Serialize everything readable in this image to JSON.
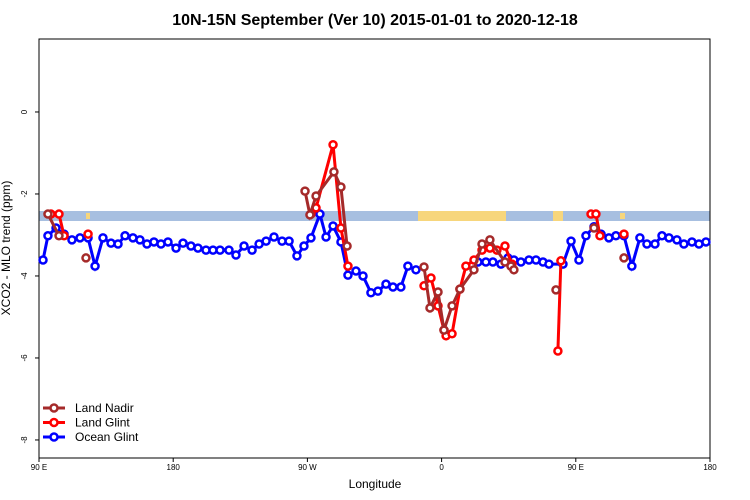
{
  "chart_data": {
    "type": "line",
    "title": "10N-15N September (Ver 10)   2015-01-01 to 2020-12-18",
    "xlabel": "Longitude",
    "ylabel": "XCO2 - MLO trend (ppm)",
    "xlim": [
      90,
      540
    ],
    "ylim": [
      -8.44,
      1.78
    ],
    "xticks": [
      {
        "value": 90,
        "label": "90 E"
      },
      {
        "value": 180,
        "label": "180"
      },
      {
        "value": 270,
        "label": "90 W"
      },
      {
        "value": 360,
        "label": "0"
      },
      {
        "value": 450,
        "label": "90 E"
      },
      {
        "value": 540,
        "label": "180"
      }
    ],
    "yticks": [
      0,
      -2,
      -4,
      -6,
      -8
    ],
    "legend": "bottom-left",
    "series": [
      {
        "name": "Land Nadir",
        "color": "#a52a2a",
        "x": [
          96.0,
          103.4,
          null,
          121.5,
          null,
          268.4,
          271.7,
          275.8,
          287.8,
          292.5,
          296.6,
          null,
          348.2,
          352.2,
          357.6,
          361.6,
          367.0,
          372.3,
          381.7,
          387.1,
          392.4,
          402.5,
          406.5,
          408.5,
          null,
          436.7,
          null,
          462.2,
          null,
          482.3
        ],
        "values": [
          -2.49,
          -3.02,
          null,
          -3.56,
          null,
          -1.93,
          -2.51,
          -2.05,
          -1.46,
          -1.83,
          -3.27,
          null,
          -3.78,
          -4.78,
          -4.39,
          -5.32,
          -4.73,
          -4.32,
          -3.85,
          -3.22,
          -3.12,
          -3.66,
          -3.76,
          -3.85,
          null,
          -4.34,
          null,
          -2.83,
          null,
          -3.56
        ]
      },
      {
        "name": "Land Glint",
        "color": "#ff0000",
        "x": [
          98.0,
          103.4,
          106.8,
          null,
          122.9,
          null,
          272.4,
          275.8,
          287.2,
          292.5,
          297.2,
          null,
          348.2,
          352.9,
          357.6,
          361.6,
          363.0,
          367.0,
          372.3,
          376.3,
          381.7,
          387.1,
          392.4,
          397.1,
          402.5,
          407.2,
          null,
          438.0,
          440.0,
          null,
          460.2,
          463.5,
          466.2,
          null,
          482.3
        ],
        "values": [
          -2.49,
          -2.49,
          -3.02,
          null,
          -2.98,
          null,
          -2.49,
          -2.34,
          -0.8,
          -2.83,
          -3.76,
          null,
          -4.24,
          -4.05,
          -4.73,
          -5.32,
          -5.46,
          -5.41,
          -4.32,
          -3.76,
          -3.61,
          -3.37,
          -3.32,
          -3.37,
          -3.27,
          -3.71,
          null,
          -5.83,
          -3.63,
          null,
          -2.49,
          -2.49,
          -3.02,
          null,
          -2.98
        ]
      },
      {
        "name": "Ocean Glint",
        "color": "#0000ff",
        "x": [
          92.7,
          96.0,
          101.4,
          106.8,
          112.1,
          117.5,
          122.9,
          127.6,
          132.9,
          138.3,
          143.0,
          147.7,
          153.0,
          157.7,
          162.4,
          167.1,
          171.8,
          176.5,
          181.9,
          186.6,
          191.9,
          196.6,
          202.0,
          206.7,
          211.4,
          217.4,
          222.1,
          227.5,
          232.9,
          237.6,
          242.3,
          247.6,
          253.0,
          257.7,
          263.0,
          267.7,
          272.4,
          278.4,
          282.5,
          287.2,
          292.5,
          297.2,
          302.6,
          307.3,
          312.6,
          317.3,
          322.7,
          327.4,
          332.7,
          337.4,
          342.8,
          null,
          384.4,
          389.7,
          394.4,
          399.8,
          404.5,
          408.5,
          413.2,
          418.6,
          423.3,
          428.0,
          432.0,
          441.4,
          446.8,
          452.1,
          456.8,
          462.2,
          466.9,
          472.2,
          476.9,
          482.3,
          487.6,
          493.0,
          497.7,
          503.1,
          507.8,
          512.5,
          517.8,
          522.5,
          527.9,
          532.6,
          537.3
        ],
        "values": [
          -3.61,
          -3.02,
          -2.83,
          -2.98,
          -3.12,
          -3.07,
          -3.07,
          -3.76,
          -3.07,
          -3.2,
          -3.22,
          -3.02,
          -3.07,
          -3.12,
          -3.22,
          -3.17,
          -3.22,
          -3.17,
          -3.32,
          -3.2,
          -3.27,
          -3.32,
          -3.37,
          -3.37,
          -3.37,
          -3.37,
          -3.49,
          -3.27,
          -3.37,
          -3.22,
          -3.15,
          -3.05,
          -3.15,
          -3.15,
          -3.51,
          -3.27,
          -3.07,
          -2.49,
          -3.05,
          -2.78,
          -3.17,
          -3.98,
          -3.88,
          -4.0,
          -4.41,
          -4.37,
          -4.2,
          -4.27,
          -4.27,
          -3.76,
          -3.85,
          null,
          -3.66,
          -3.66,
          -3.66,
          -3.71,
          -3.56,
          -3.61,
          -3.66,
          -3.61,
          -3.61,
          -3.66,
          -3.71,
          -3.71,
          -3.15,
          -3.61,
          -3.02,
          -2.8,
          -2.98,
          -3.07,
          -3.02,
          -3.02,
          -3.76,
          -3.07,
          -3.22,
          -3.22,
          -3.02,
          -3.07,
          -3.12,
          -3.22,
          -3.17,
          -3.22,
          -3.17
        ]
      }
    ]
  }
}
